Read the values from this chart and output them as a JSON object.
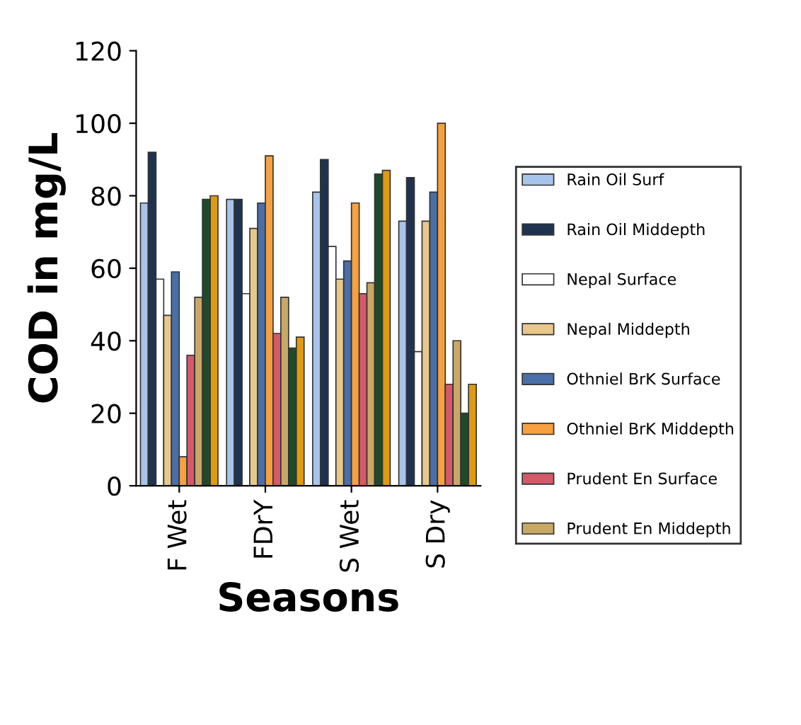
{
  "chart_data": {
    "type": "bar",
    "xlabel": "Seasons",
    "ylabel": "COD in mg/L",
    "categories": [
      "F Wet",
      "FDrY",
      "S Wet",
      "S Dry"
    ],
    "ylim": [
      0,
      120
    ],
    "yticks": [
      0,
      20,
      40,
      60,
      80,
      100,
      120
    ],
    "grid": false,
    "legend": "right",
    "series": [
      {
        "name": "Rain Oil Surf",
        "color": "#a9c4ea",
        "values": [
          78,
          79,
          81,
          73
        ]
      },
      {
        "name": "Rain Oil Middepth",
        "color": "#1f3350",
        "values": [
          92,
          79,
          90,
          85
        ]
      },
      {
        "name": "Nepal Surface",
        "color": "#ffffff",
        "values": [
          57,
          53,
          66,
          37
        ]
      },
      {
        "name": "Nepal Middepth",
        "color": "#e8c88a",
        "values": [
          47,
          71,
          57,
          73
        ]
      },
      {
        "name": "Othniel BrK Surface",
        "color": "#4a6fa8",
        "values": [
          59,
          78,
          62,
          81
        ]
      },
      {
        "name": "Othniel BrK Middepth",
        "color": "#f7a040",
        "values": [
          8,
          91,
          78,
          100
        ]
      },
      {
        "name": "Prudent En Surface",
        "color": "#d45a6a",
        "values": [
          36,
          42,
          53,
          28
        ]
      },
      {
        "name": "Prudent En Middepth",
        "color": "#c9a866",
        "values": [
          52,
          52,
          56,
          40
        ]
      },
      {
        "color": "#1f4a2a",
        "values": [
          79,
          38,
          86,
          20
        ]
      },
      {
        "color": "#e09a10",
        "values": [
          80,
          41,
          87,
          28
        ]
      }
    ]
  }
}
